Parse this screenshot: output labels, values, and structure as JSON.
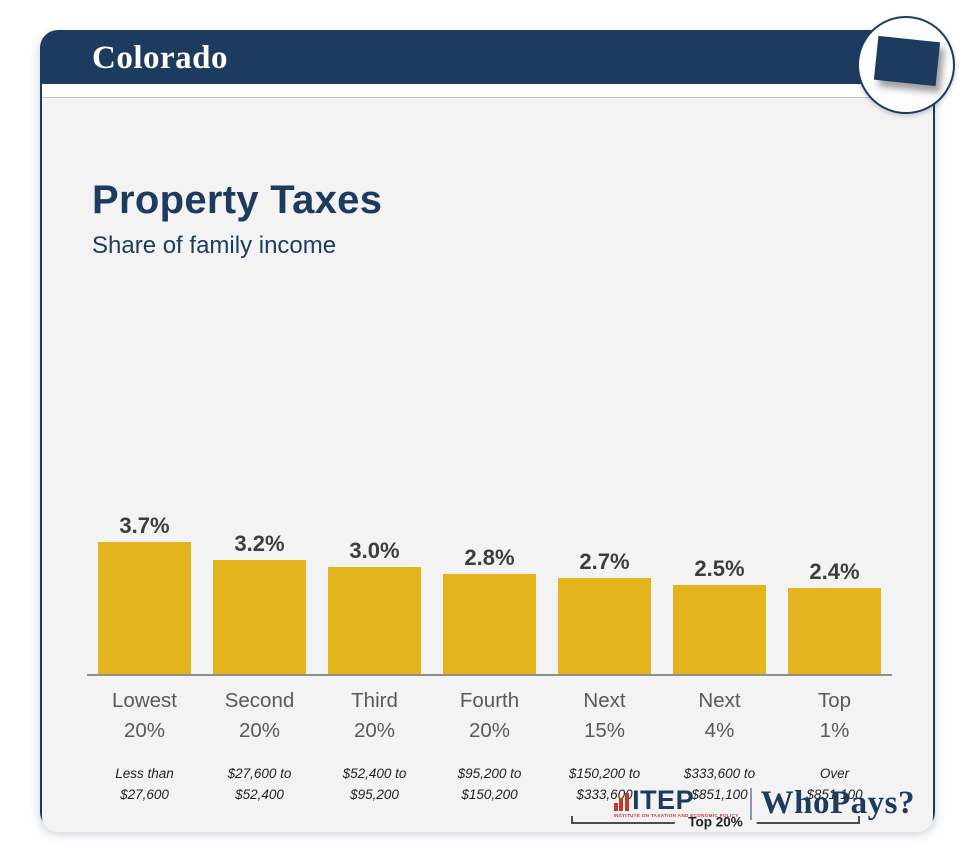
{
  "header": {
    "state": "Colorado"
  },
  "badge": {
    "shape": "colorado-state-outline"
  },
  "title": "Property Taxes",
  "subtitle": "Share of family income",
  "chart_data": {
    "type": "bar",
    "title": "Property Taxes",
    "subtitle": "Share of family income",
    "categories": [
      "Lowest\n20%",
      "Second\n20%",
      "Third\n20%",
      "Fourth\n20%",
      "Next\n15%",
      "Next\n4%",
      "Top\n1%"
    ],
    "values": [
      3.7,
      3.2,
      3.0,
      2.8,
      2.7,
      2.5,
      2.4
    ],
    "value_labels": [
      "3.7%",
      "3.2%",
      "3.0%",
      "2.8%",
      "2.7%",
      "2.5%",
      "2.4%"
    ],
    "income_ranges": [
      "Less than\n$27,600",
      "$27,600 to\n$52,400",
      "$52,400 to\n$95,200",
      "$95,200 to\n$150,200",
      "$150,200 to\n$333,600",
      "$333,600 to\n$851,100",
      "Over\n$851,100"
    ],
    "bar_color": "#e3b41e",
    "value_unit": "%",
    "grid": false,
    "legend": false,
    "annotation": {
      "label": "Top 20%",
      "spans_categories": [
        "Next 15%",
        "Next 4%",
        "Top 1%"
      ]
    }
  },
  "footer": {
    "itep_word": "ITEP",
    "itep_tagline": "INSTITUTE ON TAXATION AND ECONOMIC POLICY",
    "brand": "WhoPays?"
  },
  "colors": {
    "navy": "#1d3a5f",
    "gold": "#e3b41e",
    "panel_bg": "#f3f3f4",
    "itep_red": "#bf3a2f"
  }
}
